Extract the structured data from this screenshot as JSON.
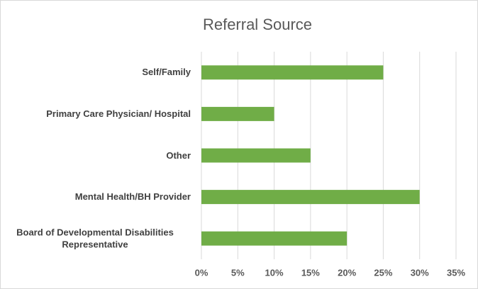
{
  "chart_data": {
    "type": "bar",
    "orientation": "horizontal",
    "title": "Referral Source",
    "categories": [
      "Self/Family",
      "Primary Care Physician/ Hospital",
      "Other",
      "Mental Health/BH Provider",
      "Board of Developmental Disabilities Representative"
    ],
    "values": [
      25,
      10,
      15,
      30,
      20
    ],
    "color": "#70ad47",
    "xlim": [
      0,
      35
    ],
    "xticks": [
      {
        "value": 0,
        "label": "0%"
      },
      {
        "value": 5,
        "label": "5%"
      },
      {
        "value": 10,
        "label": "10%"
      },
      {
        "value": 15,
        "label": "15%"
      },
      {
        "value": 20,
        "label": "20%"
      },
      {
        "value": 25,
        "label": "25%"
      },
      {
        "value": 30,
        "label": "30%"
      },
      {
        "value": 35,
        "label": "35%"
      }
    ],
    "grid": true
  }
}
